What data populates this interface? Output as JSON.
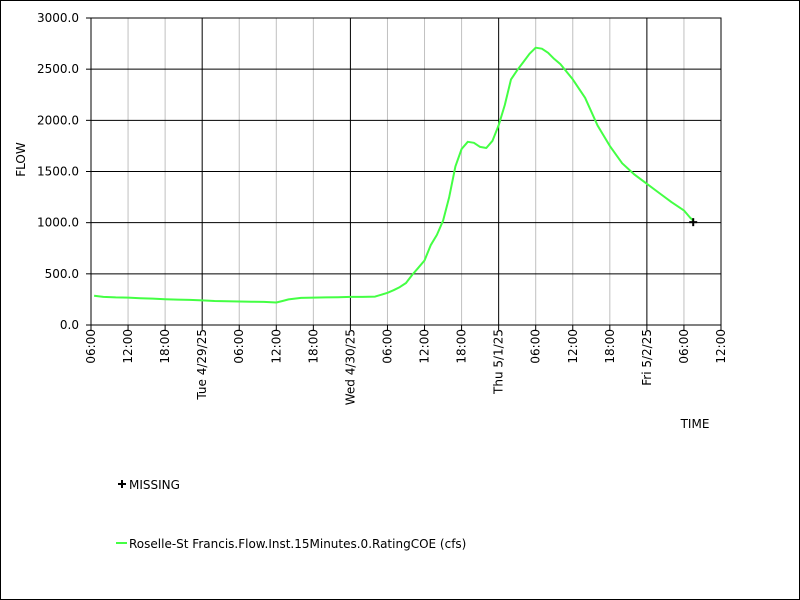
{
  "chart_data": {
    "type": "line",
    "xlabel": "TIME",
    "ylabel": "FLOW",
    "ylim": [
      0,
      3000
    ],
    "xlim": [
      "2025-04-28T06:00",
      "2025-05-02T12:00"
    ],
    "yticks": [
      "0.0",
      "500.0",
      "1000.0",
      "1500.0",
      "2000.0",
      "2500.0",
      "3000.0"
    ],
    "hour_ticks": [
      "06:00",
      "12:00",
      "18:00",
      "06:00",
      "12:00",
      "18:00",
      "06:00",
      "12:00",
      "18:00",
      "06:00",
      "12:00",
      "18:00",
      "06:00",
      "12:00"
    ],
    "day_ticks": [
      "Tue 4/29/25",
      "Wed 4/30/25",
      "Thu 5/1/25",
      "Fri 5/2/25"
    ],
    "grid": true,
    "legend_position": "bottom-left",
    "series": [
      {
        "name": "Roselle-St Francis.Flow.Inst.15Minutes.0.RatingCOE (cfs)",
        "color": "#44ff44",
        "x": [
          "2025-04-28T06:30",
          "2025-04-28T08:00",
          "2025-04-28T10:00",
          "2025-04-28T12:00",
          "2025-04-28T14:00",
          "2025-04-28T16:00",
          "2025-04-28T18:00",
          "2025-04-28T20:00",
          "2025-04-28T22:00",
          "2025-04-29T00:00",
          "2025-04-29T02:00",
          "2025-04-29T04:00",
          "2025-04-29T06:00",
          "2025-04-29T08:00",
          "2025-04-29T10:00",
          "2025-04-29T12:00",
          "2025-04-29T13:00",
          "2025-04-29T14:00",
          "2025-04-29T16:00",
          "2025-04-29T18:00",
          "2025-04-29T20:00",
          "2025-04-29T22:00",
          "2025-04-30T00:00",
          "2025-04-30T02:00",
          "2025-04-30T04:00",
          "2025-04-30T06:00",
          "2025-04-30T07:00",
          "2025-04-30T08:00",
          "2025-04-30T09:00",
          "2025-04-30T10:00",
          "2025-04-30T11:00",
          "2025-04-30T12:00",
          "2025-04-30T13:00",
          "2025-04-30T14:00",
          "2025-04-30T15:00",
          "2025-04-30T16:00",
          "2025-04-30T17:00",
          "2025-04-30T18:00",
          "2025-04-30T19:00",
          "2025-04-30T20:00",
          "2025-04-30T21:00",
          "2025-04-30T22:00",
          "2025-04-30T23:00",
          "2025-05-01T00:00",
          "2025-05-01T01:00",
          "2025-05-01T02:00",
          "2025-05-01T03:00",
          "2025-05-01T04:00",
          "2025-05-01T05:00",
          "2025-05-01T06:00",
          "2025-05-01T07:00",
          "2025-05-01T08:00",
          "2025-05-01T09:00",
          "2025-05-01T10:00",
          "2025-05-01T12:00",
          "2025-05-01T14:00",
          "2025-05-01T16:00",
          "2025-05-01T18:00",
          "2025-05-01T20:00",
          "2025-05-01T22:00",
          "2025-05-02T00:00",
          "2025-05-02T02:00",
          "2025-05-02T04:00",
          "2025-05-02T06:00",
          "2025-05-02T07:00",
          "2025-05-02T07:30"
        ],
        "values": [
          285,
          275,
          270,
          268,
          262,
          258,
          252,
          248,
          245,
          240,
          235,
          232,
          230,
          228,
          226,
          220,
          235,
          250,
          265,
          268,
          270,
          272,
          275,
          275,
          278,
          315,
          340,
          370,
          410,
          490,
          560,
          630,
          780,
          880,
          1020,
          1250,
          1550,
          1720,
          1790,
          1780,
          1740,
          1730,
          1800,
          1950,
          2150,
          2400,
          2490,
          2570,
          2650,
          2710,
          2700,
          2660,
          2600,
          2550,
          2400,
          2220,
          1950,
          1750,
          1580,
          1470,
          1380,
          1290,
          1200,
          1120,
          1050,
          1020
        ]
      }
    ],
    "missing_markers": {
      "label": "MISSING",
      "x": [
        "2025-05-02T07:30"
      ],
      "values": [
        1005
      ]
    }
  }
}
